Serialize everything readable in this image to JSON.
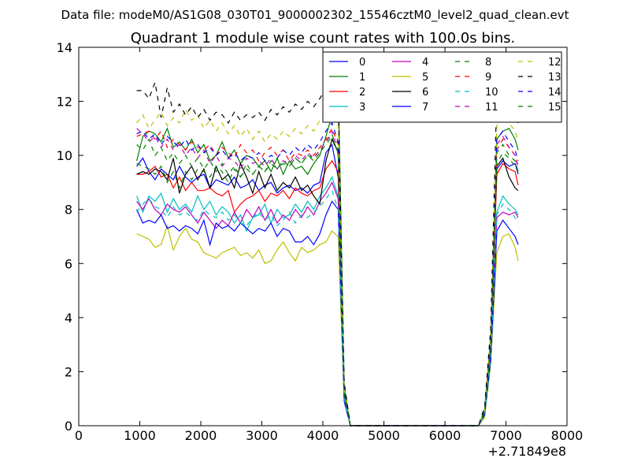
{
  "figure": {
    "suptitle": "Data file: modeM0/AS1G08_030T01_9000002302_15546cztM0_level2_quad_clean.evt"
  },
  "chart_data": {
    "type": "line",
    "title": "Quadrant 1 module wise count rates with 100.0s bins.",
    "xlabel": "",
    "ylabel": "",
    "x_offset_label": "+2.71849e8",
    "xlim": [
      0,
      8000
    ],
    "ylim": [
      0,
      14
    ],
    "xticks": [
      0,
      1000,
      2000,
      3000,
      4000,
      5000,
      6000,
      7000,
      8000
    ],
    "yticks": [
      0,
      2,
      4,
      6,
      8,
      10,
      12,
      14
    ],
    "legend_location": "upper right",
    "legend_columns": 4,
    "x": [
      950,
      1050,
      1150,
      1250,
      1350,
      1450,
      1550,
      1650,
      1750,
      1850,
      1950,
      2050,
      2150,
      2250,
      2350,
      2450,
      2550,
      2650,
      2750,
      2850,
      2950,
      3050,
      3150,
      3250,
      3350,
      3450,
      3550,
      3650,
      3750,
      3850,
      3950,
      4050,
      4150,
      4250,
      4350,
      4450,
      4550,
      6550,
      6650,
      6750,
      6850,
      6950,
      7050,
      7150,
      7200
    ],
    "series": [
      {
        "name": "0",
        "color": "#0000ff",
        "style": "solid",
        "values": [
          9.6,
          9.9,
          9.4,
          9.1,
          9.5,
          9.3,
          9.1,
          9.6,
          9.2,
          9.0,
          9.2,
          9.3,
          8.8,
          9.1,
          9.0,
          8.9,
          9.2,
          8.8,
          8.9,
          9.1,
          8.7,
          8.9,
          9.0,
          8.6,
          8.8,
          8.9,
          8.7,
          8.8,
          8.6,
          8.9,
          9.0,
          10.1,
          10.4,
          9.2,
          1.2,
          0,
          0,
          0,
          0.5,
          2.8,
          9.5,
          9.8,
          9.6,
          9.7,
          9.3
        ]
      },
      {
        "name": "1",
        "color": "#008000",
        "style": "solid",
        "values": [
          9.8,
          10.7,
          10.9,
          10.8,
          10.5,
          11.0,
          10.3,
          10.5,
          10.2,
          10.6,
          10.1,
          10.4,
          9.8,
          10.0,
          10.5,
          9.9,
          10.2,
          9.7,
          10.0,
          9.9,
          9.6,
          9.8,
          9.4,
          9.9,
          9.3,
          9.8,
          9.5,
          9.6,
          9.3,
          9.7,
          10.0,
          10.7,
          11.5,
          12.8,
          1.5,
          0,
          0,
          0,
          0.6,
          3.2,
          10.6,
          10.9,
          11.0,
          10.6,
          10.2
        ]
      },
      {
        "name": "2",
        "color": "#ff0000",
        "style": "solid",
        "values": [
          9.3,
          9.3,
          9.4,
          9.6,
          9.2,
          9.3,
          8.8,
          9.2,
          8.7,
          9.0,
          8.7,
          8.7,
          8.8,
          8.6,
          8.5,
          8.7,
          7.9,
          8.2,
          8.4,
          8.5,
          8.7,
          8.3,
          8.6,
          8.5,
          8.7,
          8.4,
          8.8,
          8.6,
          8.5,
          8.7,
          8.8,
          9.5,
          9.8,
          9.4,
          1.1,
          0,
          0,
          0,
          0.5,
          2.9,
          9.3,
          9.7,
          9.5,
          9.4,
          8.9
        ]
      },
      {
        "name": "3",
        "color": "#00bfbf",
        "style": "solid",
        "values": [
          8.5,
          7.9,
          8.5,
          8.3,
          8.6,
          7.9,
          8.4,
          8.0,
          8.2,
          7.9,
          8.5,
          8.0,
          8.3,
          7.8,
          8.1,
          7.9,
          7.5,
          7.8,
          7.2,
          7.7,
          7.8,
          8.2,
          7.5,
          8.0,
          7.7,
          7.8,
          8.2,
          7.9,
          8.3,
          8.0,
          8.5,
          8.8,
          9.2,
          8.5,
          1.0,
          0,
          0,
          0,
          0.4,
          2.6,
          7.9,
          8.5,
          8.2,
          8.0,
          7.8
        ]
      },
      {
        "name": "4",
        "color": "#bf00bf",
        "style": "solid",
        "values": [
          8.3,
          8.0,
          8.4,
          8.0,
          7.8,
          8.2,
          8.0,
          7.9,
          8.1,
          7.8,
          7.5,
          7.9,
          7.6,
          7.3,
          7.6,
          7.4,
          7.9,
          7.5,
          8.0,
          7.7,
          8.1,
          7.6,
          8.0,
          7.5,
          7.8,
          7.6,
          8.0,
          7.7,
          8.1,
          7.8,
          8.3,
          8.6,
          9.0,
          8.4,
          1.0,
          0,
          0,
          0,
          0.4,
          2.5,
          7.7,
          7.9,
          7.8,
          7.9,
          7.7
        ]
      },
      {
        "name": "5",
        "color": "#bfbf00",
        "style": "solid",
        "values": [
          7.1,
          7.0,
          6.9,
          6.6,
          6.7,
          7.4,
          6.5,
          7.0,
          7.3,
          6.9,
          6.8,
          6.4,
          6.3,
          6.2,
          6.4,
          6.5,
          6.6,
          6.3,
          6.4,
          6.2,
          6.5,
          6.0,
          6.1,
          6.5,
          6.8,
          6.4,
          6.1,
          6.6,
          6.4,
          6.5,
          6.7,
          6.8,
          7.2,
          7.0,
          0.9,
          0,
          0,
          0,
          0.3,
          2.3,
          6.4,
          7.0,
          7.1,
          6.6,
          6.1
        ]
      },
      {
        "name": "6",
        "color": "#000000",
        "style": "solid",
        "values": [
          9.3,
          9.4,
          9.3,
          9.5,
          9.4,
          9.1,
          9.9,
          8.6,
          9.3,
          9.6,
          9.1,
          9.5,
          8.8,
          9.6,
          9.1,
          9.3,
          8.8,
          9.7,
          9.2,
          8.6,
          9.4,
          8.8,
          9.3,
          8.7,
          9.0,
          8.8,
          9.2,
          8.7,
          8.9,
          8.5,
          8.2,
          9.8,
          10.6,
          10.1,
          1.3,
          0,
          0,
          0,
          0.5,
          3.0,
          9.6,
          9.9,
          9.2,
          8.8,
          8.7
        ]
      },
      {
        "name": "7",
        "color": "#0000ff",
        "style": "solid",
        "values": [
          8.0,
          7.5,
          7.6,
          7.5,
          7.8,
          7.3,
          7.4,
          7.2,
          7.4,
          7.3,
          7.1,
          7.6,
          6.7,
          7.5,
          7.3,
          7.4,
          7.2,
          7.5,
          7.3,
          7.1,
          7.3,
          7.2,
          7.5,
          7.0,
          7.3,
          7.2,
          6.8,
          6.8,
          7.0,
          6.7,
          7.1,
          7.8,
          8.3,
          8.0,
          0.9,
          0,
          0,
          0,
          0.4,
          2.4,
          7.2,
          7.6,
          7.3,
          7.0,
          6.7
        ]
      },
      {
        "name": "8",
        "color": "#008000",
        "style": "dashed",
        "values": [
          9.7,
          9.6,
          9.5,
          9.3,
          9.6,
          9.0,
          9.4,
          8.8,
          9.4,
          9.1,
          9.5,
          9.4,
          9.2,
          9.6,
          9.4,
          9.0,
          9.5,
          9.2,
          9.7,
          9.3,
          9.6,
          9.4,
          9.8,
          9.5,
          9.7,
          9.6,
          9.9,
          9.7,
          10.0,
          9.9,
          10.2,
          10.5,
          10.8,
          10.0,
          1.2,
          0,
          0,
          0,
          0.5,
          2.9,
          9.7,
          10.1,
          9.9,
          9.6,
          9.4
        ]
      },
      {
        "name": "9",
        "color": "#ff0000",
        "style": "dashed",
        "values": [
          10.7,
          10.8,
          10.9,
          10.6,
          10.9,
          10.3,
          10.6,
          10.4,
          10.2,
          10.5,
          10.3,
          10.2,
          10.4,
          10.0,
          10.3,
          10.1,
          9.9,
          10.4,
          10.1,
          10.2,
          9.8,
          10.1,
          10.3,
          10.0,
          10.2,
          9.8,
          10.1,
          10.0,
          10.2,
          10.0,
          10.3,
          10.6,
          11.0,
          10.4,
          1.3,
          0,
          0,
          0,
          0.5,
          3.1,
          10.2,
          10.6,
          10.3,
          10.0,
          9.6
        ]
      },
      {
        "name": "10",
        "color": "#00bfbf",
        "style": "dashed",
        "values": [
          7.9,
          8.2,
          8.4,
          8.1,
          8.0,
          7.7,
          8.1,
          7.8,
          7.9,
          7.7,
          7.6,
          8.0,
          7.8,
          7.7,
          7.9,
          7.6,
          7.8,
          7.5,
          7.4,
          7.7,
          7.9,
          7.6,
          7.8,
          7.4,
          7.6,
          7.9,
          7.5,
          7.8,
          7.7,
          7.9,
          8.1,
          8.4,
          8.7,
          8.0,
          1.0,
          0,
          0,
          0,
          0.4,
          2.5,
          7.8,
          8.2,
          8.0,
          7.7,
          7.5
        ]
      },
      {
        "name": "11",
        "color": "#bf00bf",
        "style": "dashed",
        "values": [
          11.0,
          10.8,
          10.5,
          10.7,
          10.3,
          10.6,
          10.2,
          10.4,
          10.0,
          10.3,
          9.9,
          10.2,
          9.7,
          10.0,
          9.6,
          9.9,
          9.8,
          9.5,
          9.9,
          9.7,
          9.8,
          9.6,
          9.9,
          9.5,
          9.8,
          9.7,
          10.0,
          9.8,
          10.1,
          9.9,
          10.2,
          10.5,
          10.9,
          10.2,
          1.2,
          0,
          0,
          0,
          0.5,
          3.0,
          10.4,
          10.7,
          10.3,
          10.0,
          9.5
        ]
      },
      {
        "name": "12",
        "color": "#bfbf00",
        "style": "dashed",
        "values": [
          11.2,
          11.5,
          11.0,
          11.3,
          11.6,
          11.1,
          11.4,
          11.2,
          11.7,
          11.3,
          11.5,
          11.0,
          11.3,
          10.9,
          11.2,
          10.8,
          11.1,
          10.7,
          11.0,
          10.6,
          10.9,
          10.5,
          10.8,
          10.6,
          10.9,
          10.7,
          11.0,
          10.8,
          11.1,
          10.9,
          11.3,
          11.6,
          11.9,
          11.3,
          1.4,
          0,
          0,
          0,
          0.6,
          3.4,
          11.1,
          11.5,
          11.2,
          10.9,
          10.5
        ]
      },
      {
        "name": "13",
        "color": "#000000",
        "style": "dashed",
        "values": [
          12.4,
          12.4,
          12.1,
          12.7,
          11.4,
          12.5,
          11.6,
          11.9,
          11.5,
          11.8,
          11.4,
          11.7,
          11.3,
          11.6,
          11.5,
          11.2,
          11.6,
          11.3,
          11.5,
          11.4,
          11.6,
          11.3,
          11.7,
          11.5,
          11.8,
          11.6,
          11.9,
          11.7,
          12.0,
          11.8,
          12.1,
          12.5,
          12.8,
          12.2,
          1.6,
          0,
          0,
          0,
          0.7,
          3.6,
          12.3,
          12.2,
          12.0,
          11.8,
          11.2
        ]
      },
      {
        "name": "14",
        "color": "#0000ff",
        "style": "dashed",
        "values": [
          10.8,
          10.9,
          10.6,
          10.8,
          10.4,
          10.7,
          10.5,
          10.3,
          10.6,
          10.2,
          10.4,
          10.1,
          10.3,
          10.0,
          10.2,
          9.9,
          10.1,
          9.8,
          10.0,
          9.9,
          10.1,
          9.8,
          10.0,
          9.9,
          10.2,
          10.0,
          10.3,
          10.1,
          10.4,
          10.2,
          10.5,
          10.9,
          11.2,
          10.5,
          1.3,
          0,
          0,
          0,
          0.5,
          3.1,
          10.6,
          10.9,
          10.5,
          10.2,
          9.8
        ]
      },
      {
        "name": "15",
        "color": "#008000",
        "style": "dashed",
        "values": [
          10.4,
          10.2,
          10.6,
          10.0,
          10.3,
          9.8,
          10.1,
          9.7,
          10.0,
          9.6,
          9.9,
          9.5,
          9.8,
          9.4,
          9.7,
          9.3,
          9.6,
          9.2,
          9.5,
          9.3,
          9.6,
          9.4,
          9.7,
          9.5,
          9.8,
          9.6,
          9.9,
          9.7,
          10.0,
          9.8,
          10.1,
          10.4,
          10.7,
          10.1,
          1.2,
          0,
          0,
          0,
          0.5,
          3.0,
          10.1,
          10.4,
          10.0,
          9.8,
          9.4
        ]
      }
    ]
  }
}
